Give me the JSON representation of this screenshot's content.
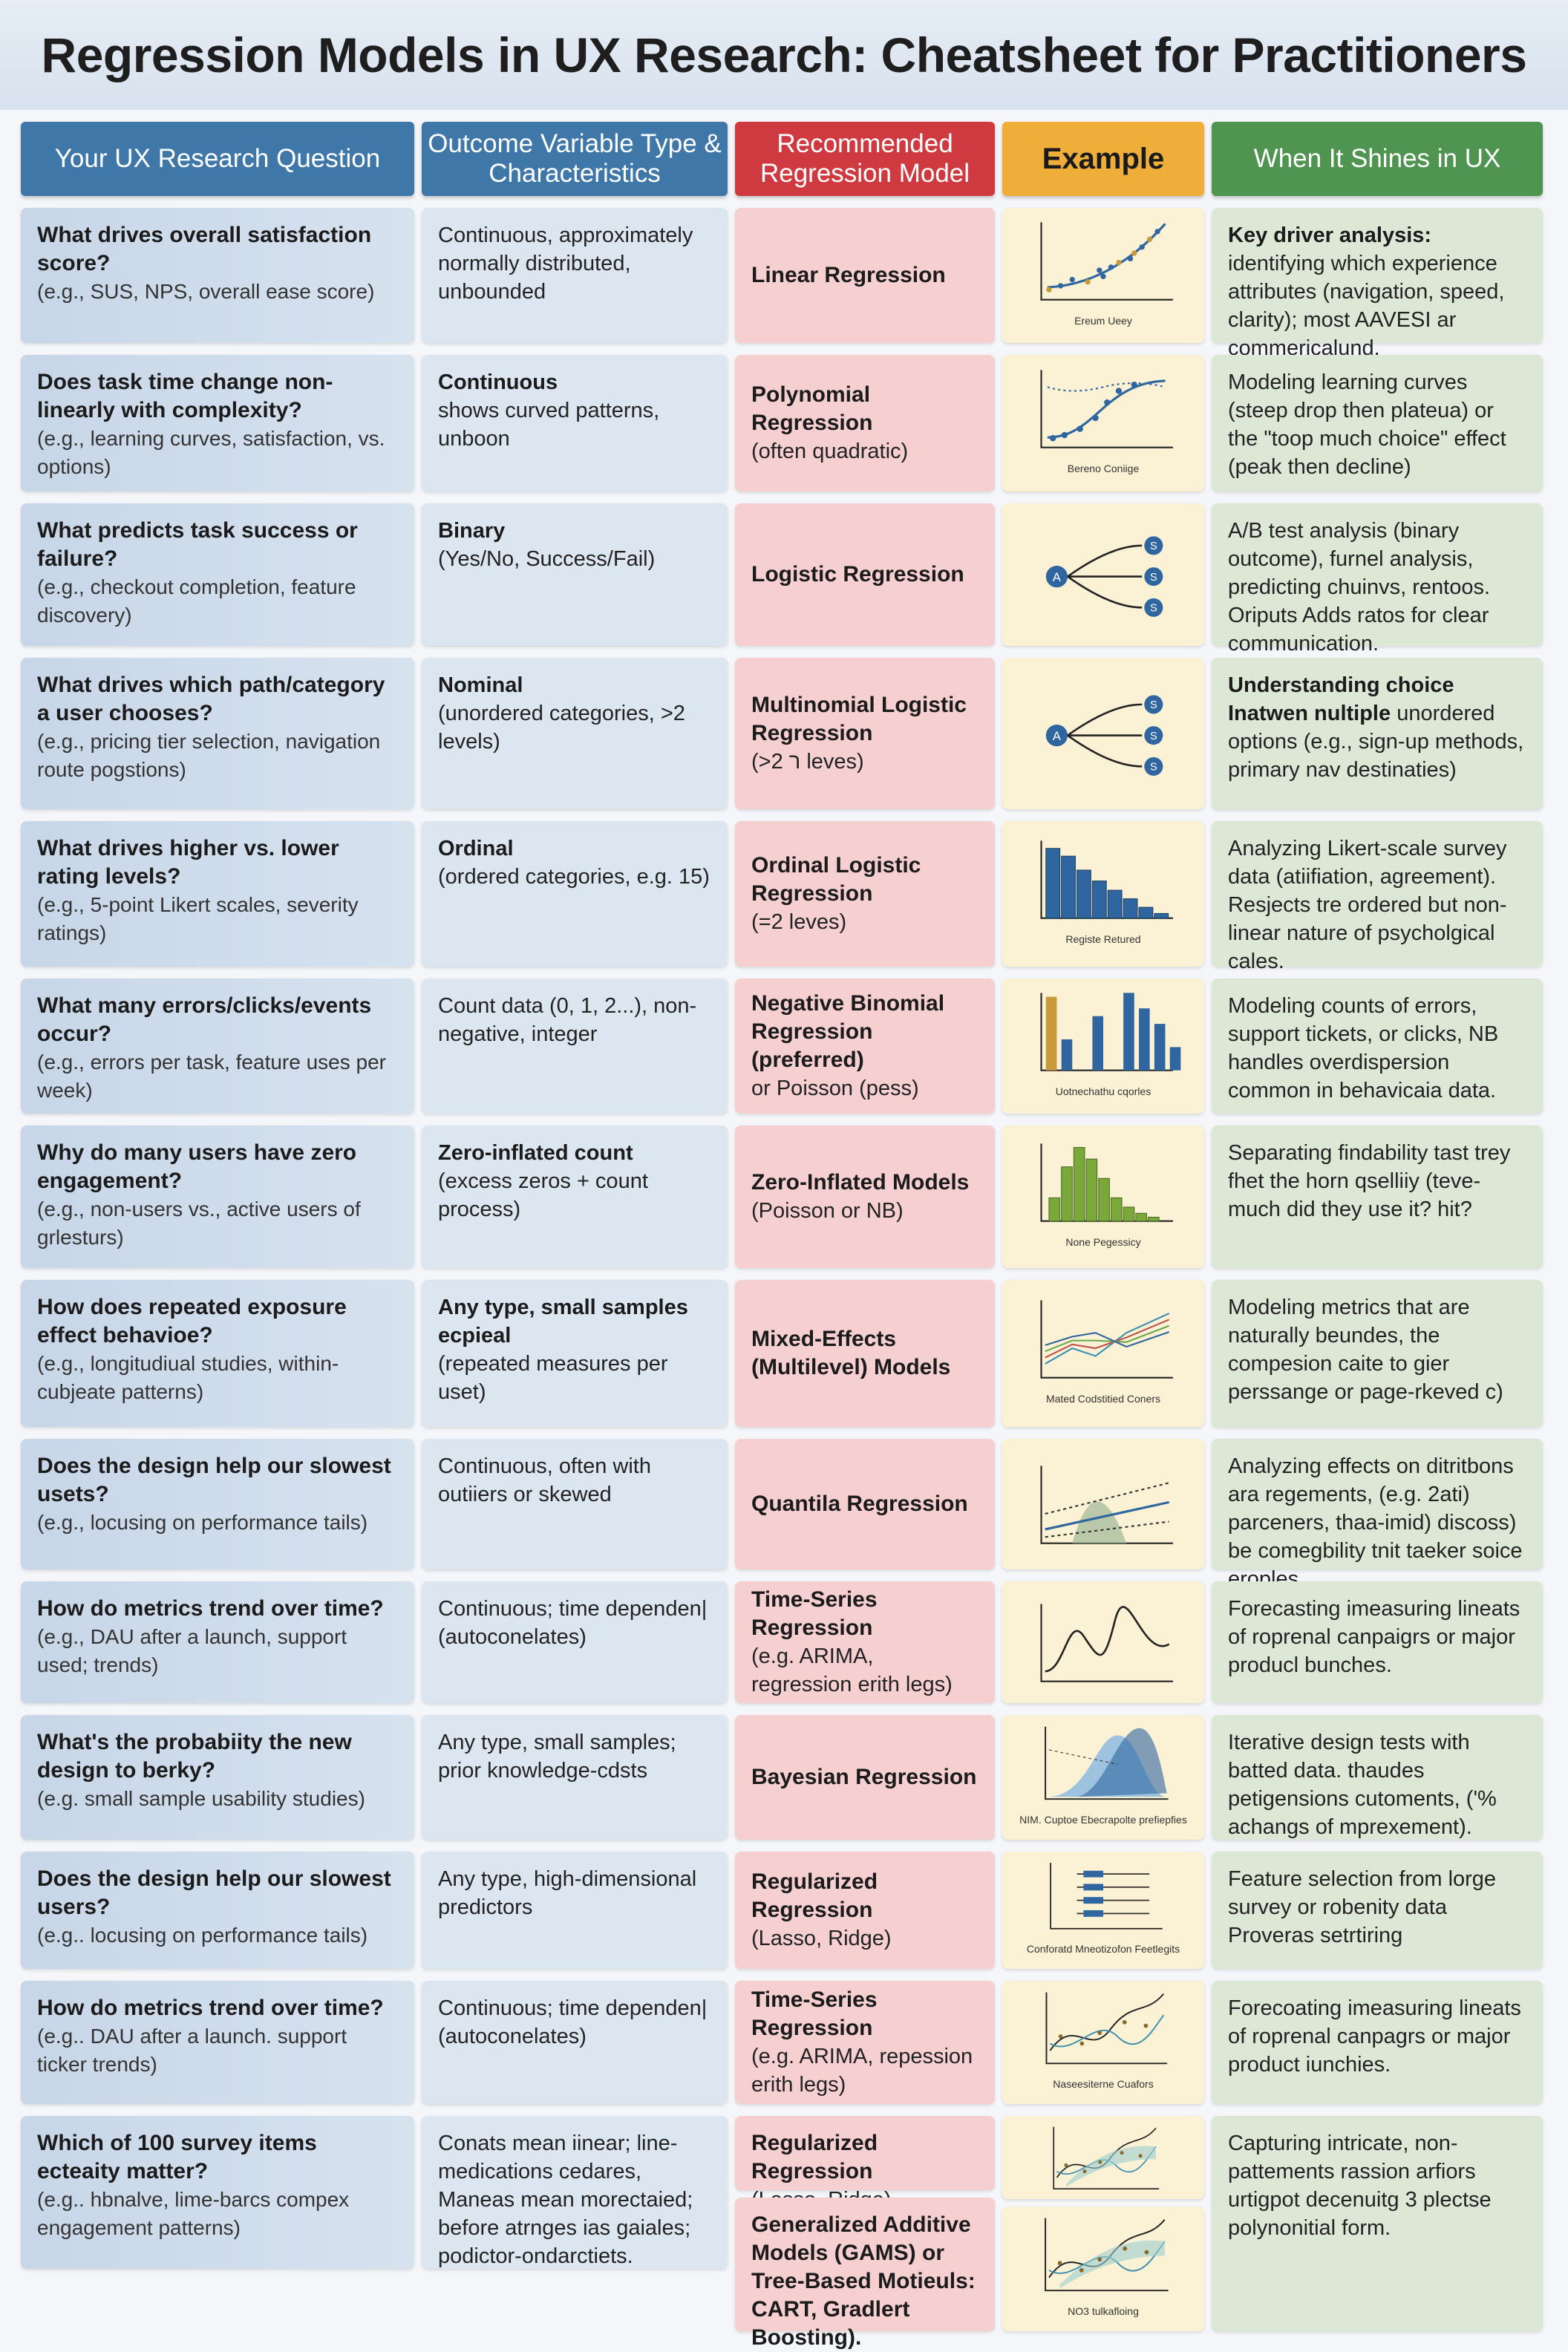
{
  "title": "Regression Models in UX Research: Cheatsheet for Practitioners",
  "headers": [
    "Your UX Research Question",
    "Outcome Variable Type & Characteristics",
    "Recommended Regression Model",
    "Example",
    "When It Shines in UX"
  ],
  "colors": {
    "header_blue": "#3f77a8",
    "header_red": "#cf3a40",
    "header_yellow": "#efad3a",
    "header_green": "#4f9451"
  },
  "rows": [
    {
      "q": "What drives overall satisfaction score?",
      "qe": "(e.g., SUS, NPS, overall ease score)",
      "ot": "",
      "od": "Continuous, approximately normally distributed, unbounded",
      "mt": "Linear Regression",
      "md": "",
      "kind": "scatter",
      "cap": "Ereum Ueey",
      "st": "Key driver analysis:",
      "sd": "identifying which experience attributes (navigation, speed, clarity); most AAVESI ar commericalund."
    },
    {
      "q": "Does task time change non-linearly with complexity?",
      "qe": "(e.g., learning curves, satisfaction, vs. options)",
      "ot": "Continuous",
      "od": "shows curved patterns, unboon",
      "mt": "Polynomial Regression",
      "md": "(often quadratic)",
      "kind": "scurve",
      "cap": "Bereno Coniige",
      "st": "",
      "sd": "Modeling learning curves (steep drop then plateua) or the \"toop much choice\" effect (peak then decline)"
    },
    {
      "q": "What predicts task success or failure?",
      "qe": "(e.g., checkout completion, feature discovery)",
      "ot": "Binary",
      "od": "(Yes/No, Success/Fail)",
      "mt": "Logistic Regression",
      "md": "",
      "kind": "tree",
      "cap": "",
      "st": "",
      "sd": "A/B test analysis (binary outcome), furnel analysis, predicting chuinvs, rentoos. Oriputs Adds ratos for clear communication."
    },
    {
      "q": "What drives which path/category a user chooses?",
      "qe": "(e.g., pricing tier selection, navigation route pogstions)",
      "ot": "Nominal",
      "od": "(unordered categories, >2 levels)",
      "mt": "Multinomial Logistic Regression",
      "md": "(>2 ר leves)",
      "kind": "tree",
      "cap": "",
      "st": "Understanding choice Inatwen nultiple",
      "sd": "unordered options (e.g., sign-up methods, primary nav destinaties)"
    },
    {
      "q": "What drives higher vs. lower rating levels?",
      "qe": "(e.g., 5-point Likert scales, severity ratings)",
      "ot": "Ordinal",
      "od": "(ordered categories, e.g. 15)",
      "mt": "Ordinal Logistic Regression",
      "md": "(=2 leves)",
      "kind": "bars",
      "cap": "Registe Retured",
      "st": "",
      "sd": "Analyzing Likert-scale survey data (atiifiation, agreement). Resjects tre ordered but non-linear nature of psycholgical cales."
    },
    {
      "q": "What many errors/clicks/events occur?",
      "qe": "(e.g., errors per task, feature uses per week)",
      "ot": "",
      "od": "Count data (0, 1, 2...), non-negative, integer",
      "mt": "Negative Binomial Regression (preferred)",
      "md": "or Poisson (pess)",
      "kind": "count",
      "cap": "Uotnechathu cqorles",
      "st": "",
      "sd": "Modeling counts of errors, support tickets, or clicks, NB handles overdispersion common in behavicaia data."
    },
    {
      "q": "Why do many users have zero engagement?",
      "qe": "(e.g., non-users vs., active users of grlesturs)",
      "ot": "Zero-inflated count",
      "od": "(excess zeros + count process)",
      "mt": "Zero-Inflated Models",
      "md": "(Poisson or NB)",
      "kind": "hist",
      "cap": "None Pegessicy",
      "st": "",
      "sd": "Separating findability tast trey fhet the horn qselliiy (teve-much did they use it? hit?"
    },
    {
      "q": "How does repeated exposure effect behavioe?",
      "qe": "(e.g., longitudiual studies, within-cubjeate patterns)",
      "ot": "Any type, small samples ecpieal",
      "od": "(repeated measures per uset)",
      "mt": "Mixed-Effects (Multilevel) Models",
      "md": "",
      "kind": "multi",
      "cap": "Mated Codstitied Coners",
      "st": "",
      "sd": "Modeling metrics that are naturally beundes, the compesion caite to gier perssange or page-rkeved c)"
    },
    {
      "q": "Does the design help our slowest usets?",
      "qe": "(e.g., locusing on performance tails)",
      "ot": "",
      "od": "Continuous, often with outiiers or skewed",
      "mt": "Quantila Regression",
      "md": "",
      "kind": "quant",
      "cap": "",
      "st": "",
      "sd": "Analyzing effects on ditritbons ara regements, (e.g. 2ati) parceners, thaa-imid) discoss) be comegbility tnit taeker soice eroples."
    },
    {
      "q": "How do metrics trend over time?",
      "qe": "(e.g., DAU after a launch, support used; trends)",
      "ot": "",
      "od": "Continuous; time dependen| (autoconelates)",
      "mt": "Time-Series Regression",
      "md": "(e.g. ARIMA, regression erith legs)",
      "kind": "wave",
      "cap": "",
      "st": "",
      "sd": "Forecasting imeasuring lineats of roprenal canpaigrs or major producl bunches."
    },
    {
      "q": "What's the probabiity the new design to berky?",
      "qe": "(e.g. small sample usability studies)",
      "ot": "",
      "od": "Any type, small samples; prior knowledge-cdsts",
      "mt": "Bayesian Regression",
      "md": "",
      "kind": "bayes",
      "cap": "NIM. Cuptoe Ebecrapolte prefiepfies",
      "st": "",
      "sd": "Iterative design tests with batted data. thaudes petigensions cutoments, ('% achangs of mprexement)."
    },
    {
      "q": "Does the design help our slowest users?",
      "qe": "(e.g.. locusing on performance tails)",
      "ot": "",
      "od": "Any type, high-dimensional predictors",
      "mt": "Regularized Regression",
      "md": "(Lasso, Ridge)",
      "kind": "forest",
      "cap": "Conforatd Mneotizofon Feetlegits",
      "st": "",
      "sd": "Feature selection from lorge survey or robenity data Proveras setrtiring"
    },
    {
      "q": "How do metrics trend over time?",
      "qe": "(e.g.. DAU after a launch. support ticker trends)",
      "ot": "",
      "od": "Continuous; time dependen| (autoconelates)",
      "mt": "Time-Series Regression",
      "md": "(e.g. ARIMA, repession erith legs)",
      "kind": "ts",
      "cap": "Naseesiterne Cuafors",
      "st": "",
      "sd": "Forecoating imeasuring lineats of roprenal canpagrs or major product iunchies."
    }
  ],
  "last": {
    "q": "Which of 100 survey items ecteaity matter?",
    "qe": "(e.g.. hbnalve, lime-barcs compex engagement patterns)",
    "od": "Conats mean iinear; line-medications cedares, Maneas mean morectaied; before atrnges ias gaiales; podictor-ondarctiets.",
    "m1t": "Regularized Regression",
    "m1d": "(Lasso, Ridge)",
    "m2t": "Generalized Additive Models (GAMS) or Tree-Based Motieuls: CART, Gradlert Boosting).",
    "cap2": "NO3 tulkafloing",
    "sd": "Capturing intricate, non-pattements rassion arfiors urtigpot decenuitg 3 plectse polynonitial form."
  }
}
